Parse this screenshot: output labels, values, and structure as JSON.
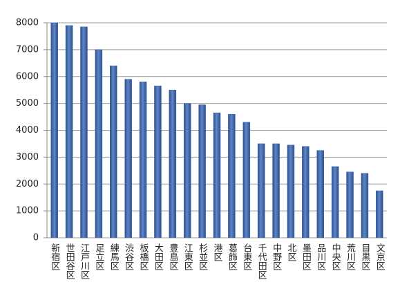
{
  "chart_data": {
    "type": "bar",
    "categories": [
      "新宿区",
      "世田谷区",
      "江戸川区",
      "足立区",
      "練馬区",
      "渋谷区",
      "板橋区",
      "大田区",
      "豊島区",
      "江東区",
      "杉並区",
      "港区",
      "葛飾区",
      "台東区",
      "千代田区",
      "中野区",
      "北区",
      "墨田区",
      "品川区",
      "中央区",
      "荒川区",
      "目黒区",
      "文京区"
    ],
    "values": [
      8000,
      7900,
      7850,
      7000,
      6400,
      5900,
      5800,
      5650,
      5500,
      5000,
      4950,
      4650,
      4600,
      4300,
      3500,
      3500,
      3450,
      3400,
      3250,
      2650,
      2450,
      2400,
      1750
    ],
    "color": "#3f66a8",
    "ylim": [
      0,
      8000
    ],
    "yticks": [
      0,
      1000,
      2000,
      3000,
      4000,
      5000,
      6000,
      7000,
      8000
    ],
    "grid": true
  }
}
